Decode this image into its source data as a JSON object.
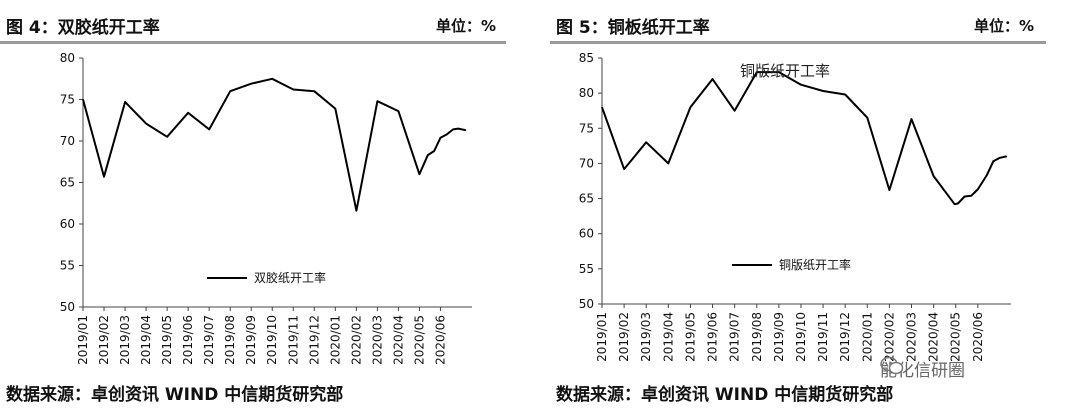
{
  "panels": [
    {
      "title": "图 4：双胶纸开工率",
      "unit": "单位：%",
      "source": "数据来源：卓创资讯 WIND 中信期货研究部"
    },
    {
      "title": "图 5：铜板纸开工率",
      "unit": "单位：%",
      "source": "数据来源：卓创资讯 WIND 中信期货研究部"
    }
  ],
  "watermark": "能化信研圈",
  "chart_data": [
    {
      "type": "line",
      "title": "",
      "xlabel": "",
      "ylabel": "",
      "ylim": [
        50,
        80
      ],
      "yticks": [
        50,
        55,
        60,
        65,
        70,
        75,
        80
      ],
      "xtick_labels": [
        "2019/01",
        "2019/02",
        "2019/03",
        "2019/04",
        "2019/05",
        "2019/06",
        "2019/07",
        "2019/08",
        "2019/09",
        "2019/10",
        "2019/11",
        "2019/12",
        "2020/01",
        "2020/02",
        "2020/03",
        "2020/04",
        "2020/05",
        "2020/06"
      ],
      "grid": false,
      "legend_position": "bottom-center",
      "series": [
        {
          "name": "双胶纸开工率",
          "color": "#000000",
          "points": [
            [
              0,
              75.0
            ],
            [
              1,
              65.7
            ],
            [
              2,
              74.7
            ],
            [
              3,
              72.1
            ],
            [
              4,
              70.5
            ],
            [
              5,
              73.4
            ],
            [
              6,
              71.4
            ],
            [
              7,
              76.0
            ],
            [
              8,
              76.9
            ],
            [
              9,
              77.5
            ],
            [
              10,
              76.2
            ],
            [
              11,
              76.0
            ],
            [
              12,
              73.9
            ],
            [
              13,
              61.6
            ],
            [
              14,
              74.8
            ],
            [
              15,
              73.6
            ],
            [
              16,
              66.0
            ],
            [
              16.4,
              68.3
            ],
            [
              16.7,
              68.8
            ],
            [
              17.0,
              70.4
            ],
            [
              17.3,
              70.8
            ],
            [
              17.6,
              71.4
            ],
            [
              17.85,
              71.5
            ],
            [
              18.2,
              71.3
            ]
          ]
        }
      ]
    },
    {
      "type": "line",
      "title": "",
      "xlabel": "",
      "ylabel": "",
      "ylim": [
        50,
        85
      ],
      "yticks": [
        50,
        55,
        60,
        65,
        70,
        75,
        80,
        85
      ],
      "xtick_labels": [
        "2019/01",
        "2019/02",
        "2019/03",
        "2019/04",
        "2019/05",
        "2019/06",
        "2019/07",
        "2019/08",
        "2019/09",
        "2019/10",
        "2019/11",
        "2019/12",
        "2020/01",
        "2020/02",
        "2020/03",
        "2020/04",
        "2020/05",
        "2020/06"
      ],
      "grid": false,
      "legend_position": "bottom-left",
      "annotation": "铜版纸开工率",
      "series": [
        {
          "name": "铜版纸开工率",
          "color": "#000000",
          "points": [
            [
              0,
              78.0
            ],
            [
              1,
              69.2
            ],
            [
              2,
              73.0
            ],
            [
              3,
              70.0
            ],
            [
              4,
              78.0
            ],
            [
              5,
              82.0
            ],
            [
              6,
              77.5
            ],
            [
              7,
              83.0
            ],
            [
              8,
              83.0
            ],
            [
              9,
              81.2
            ],
            [
              10,
              80.3
            ],
            [
              11,
              79.8
            ],
            [
              12,
              76.5
            ],
            [
              13,
              66.2
            ],
            [
              14,
              76.3
            ],
            [
              15,
              68.2
            ],
            [
              15.95,
              64.2
            ],
            [
              16.1,
              64.3
            ],
            [
              16.4,
              65.3
            ],
            [
              16.7,
              65.4
            ],
            [
              17.0,
              66.3
            ],
            [
              17.4,
              68.3
            ],
            [
              17.7,
              70.3
            ],
            [
              18.0,
              70.8
            ],
            [
              18.3,
              71.0
            ]
          ]
        }
      ]
    }
  ]
}
